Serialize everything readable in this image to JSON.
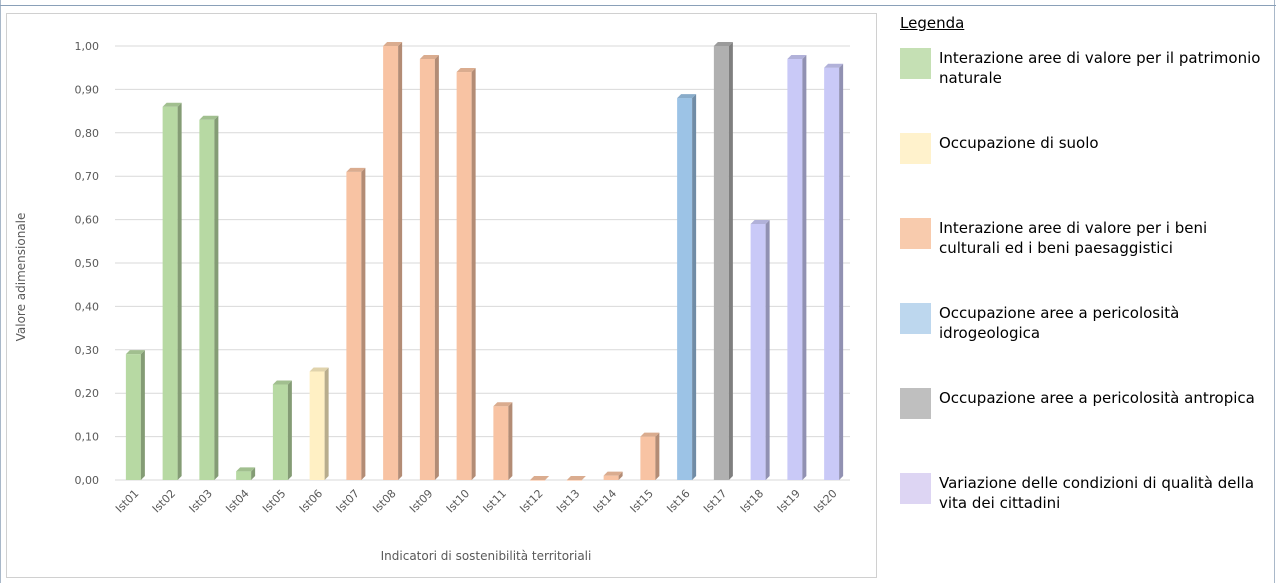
{
  "legend": {
    "title": "Legenda",
    "items": [
      {
        "label": "Interazione aree di valore per il patrimonio naturale",
        "color": "#c5e0b4"
      },
      {
        "label": "Occupazione di suolo",
        "color": "#fff2cc"
      },
      {
        "label": "Interazione aree di valore per i beni culturali ed i beni paesaggistici",
        "color": "#f8cbad"
      },
      {
        "label": "Occupazione aree a pericolosità idrogeologica",
        "color": "#bdd7ee"
      },
      {
        "label": "Occupazione aree a pericolosità antropica",
        "color": "#bfbfbf"
      },
      {
        "label": "Variazione delle condizioni di qualità della vita dei cittadini",
        "color": "#ddd5f3"
      }
    ]
  },
  "chart_data": {
    "type": "bar",
    "xlabel": "Indicatori di sostenibilità territoriali",
    "ylabel": "Valore adimensionale",
    "ylim": [
      0,
      1
    ],
    "yticks": [
      "0,00",
      "0,10",
      "0,20",
      "0,30",
      "0,40",
      "0,50",
      "0,60",
      "0,70",
      "0,80",
      "0,90",
      "1,00"
    ],
    "grid": true,
    "categories": [
      "Ist01",
      "Ist02",
      "Ist03",
      "Ist04",
      "Ist05",
      "Ist06",
      "Ist07",
      "Ist08",
      "Ist09",
      "Ist10",
      "Ist11",
      "Ist12",
      "Ist13",
      "Ist14",
      "Ist15",
      "Ist16",
      "Ist17",
      "Ist18",
      "Ist19",
      "Ist20"
    ],
    "values": [
      0.29,
      0.86,
      0.83,
      0.02,
      0.22,
      0.25,
      0.71,
      1.0,
      0.97,
      0.94,
      0.17,
      0.0,
      0.0,
      0.01,
      0.1,
      0.88,
      1.0,
      0.59,
      0.97,
      0.95
    ],
    "colors": [
      "#b7d9a3",
      "#b7d9a3",
      "#b7d9a3",
      "#b7d9a3",
      "#b7d9a3",
      "#fff0c4",
      "#f8c3a3",
      "#f8c3a3",
      "#f8c3a3",
      "#f8c3a3",
      "#f8c3a3",
      "#f8c3a3",
      "#f8c3a3",
      "#f8c3a3",
      "#f8c3a3",
      "#9cc3e6",
      "#b0b0b0",
      "#c9c9f7",
      "#c9c9f7",
      "#c9c9f7"
    ]
  }
}
